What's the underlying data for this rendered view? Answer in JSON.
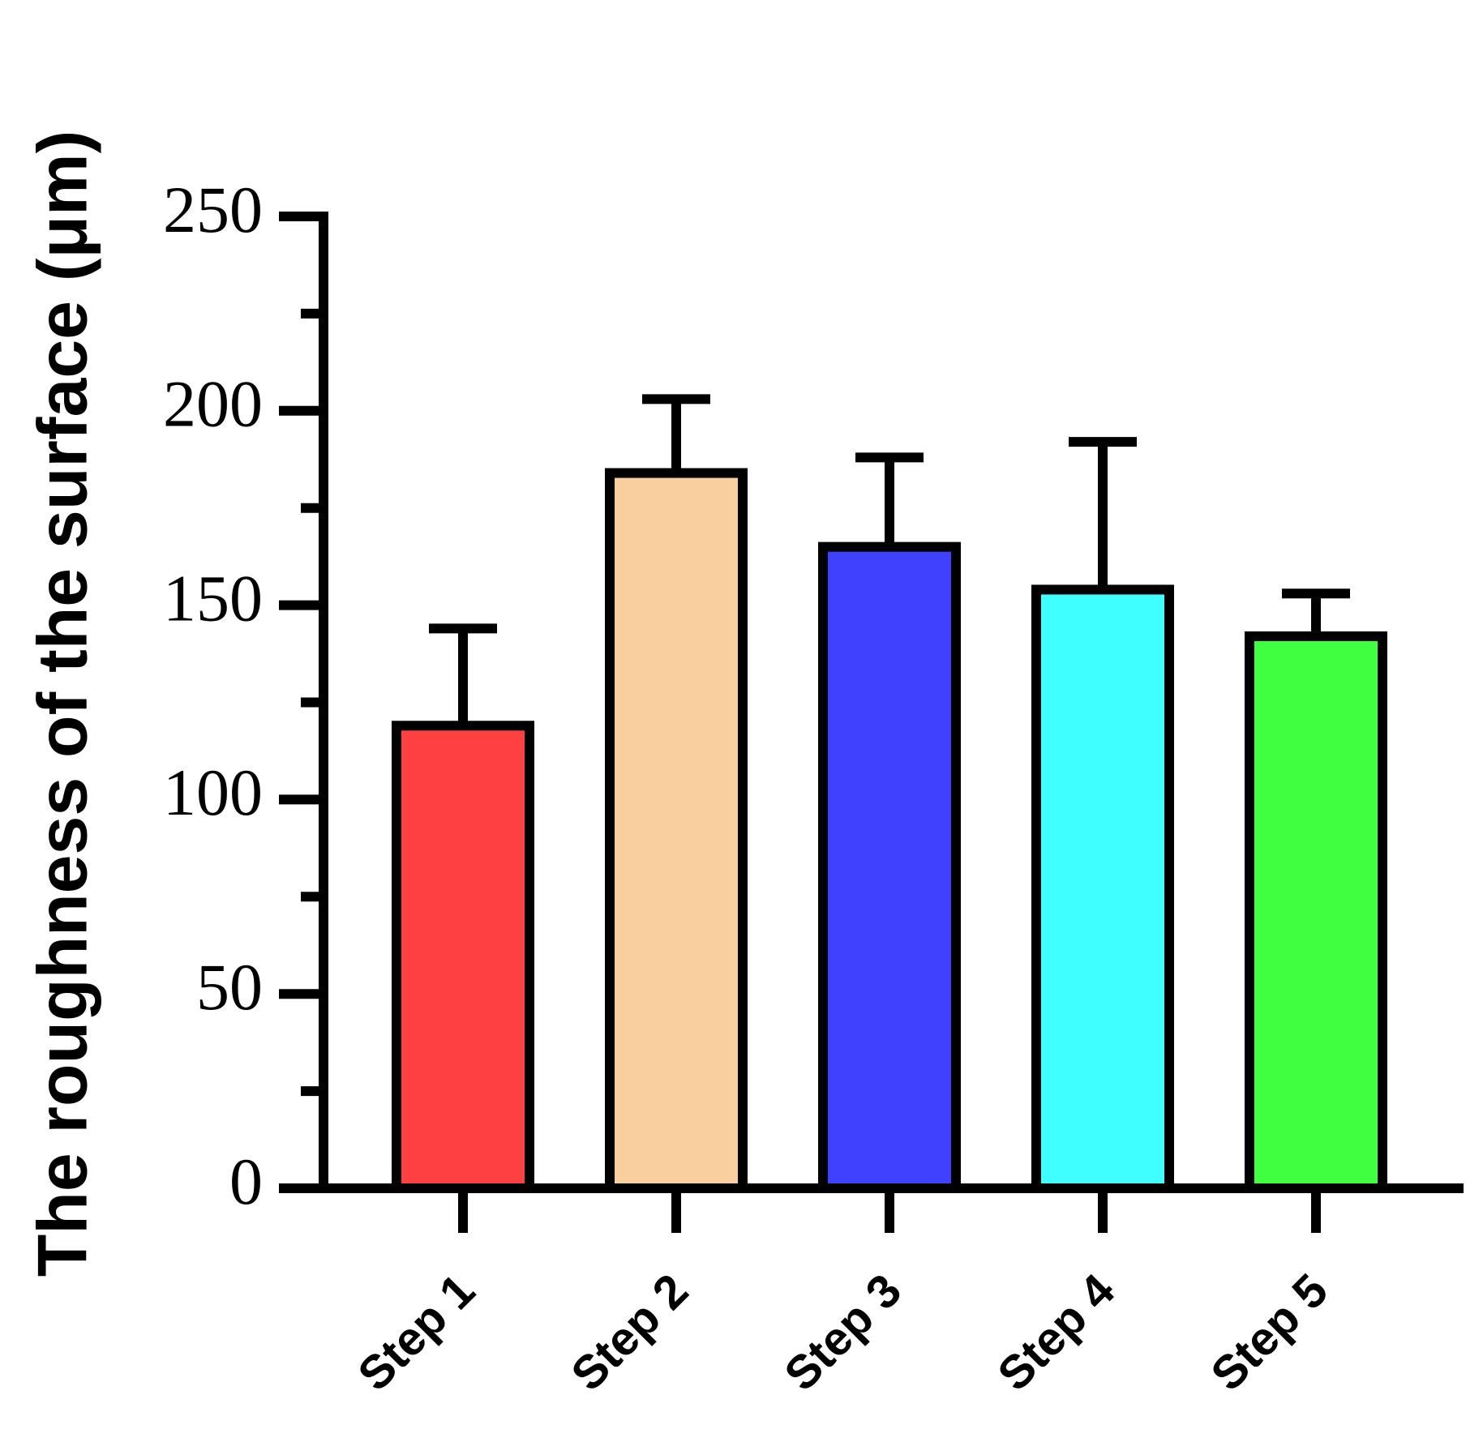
{
  "chart_data": {
    "type": "bar",
    "ylabel": "The roughness of the surface (μm)",
    "categories": [
      "Step 1",
      "Step 2",
      "Step 3",
      "Step 4",
      "Step 5"
    ],
    "values": [
      119,
      184,
      165,
      154,
      142
    ],
    "errors": [
      25,
      19,
      23,
      38,
      11
    ],
    "colors": [
      "#ff4040",
      "#f9cfa0",
      "#4040ff",
      "#40ffff",
      "#40ff40"
    ],
    "ylim": [
      0,
      250
    ],
    "yticks": [
      0,
      50,
      100,
      150,
      200,
      250
    ],
    "yminorticks": [
      25,
      75,
      125,
      175,
      225
    ],
    "grid": false
  }
}
